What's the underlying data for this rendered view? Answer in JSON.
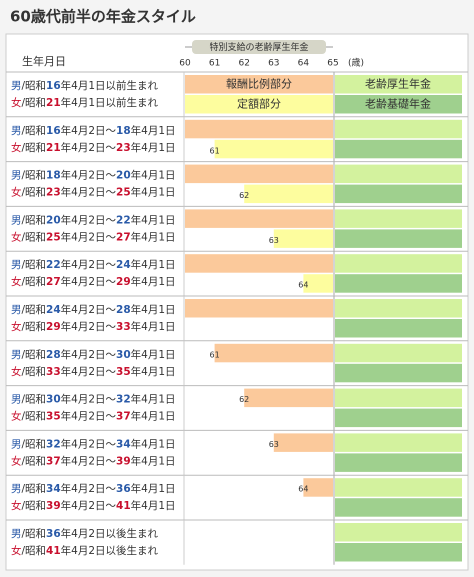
{
  "title": "60歳代前半の年金スタイル",
  "header": {
    "birth_label": "生年月日",
    "bracket": "特別支給の老齢厚生年金",
    "unit": "(歳)",
    "xlim": [
      60,
      65
    ],
    "ages": [
      60,
      61,
      62,
      63,
      64,
      65
    ]
  },
  "bands": {
    "earnings": "報酬比例部分",
    "flat": "定額部分",
    "employee": "老齢厚生年金",
    "basic": "老齢基礎年金"
  },
  "rows": [
    {
      "lines": [
        [
          "男",
          "/昭和",
          "16",
          "年4月1日以前生まれ"
        ],
        [
          "女",
          "/昭和",
          "21",
          "年4月1日以前生まれ"
        ]
      ],
      "earnings_from": 60,
      "flat_from": 60
    },
    {
      "lines": [
        [
          "男",
          "/昭和",
          "16",
          "年4月2日～",
          "18",
          "年4月1日"
        ],
        [
          "女",
          "/昭和",
          "21",
          "年4月2日～",
          "23",
          "年4月1日"
        ]
      ],
      "earnings_from": 60,
      "flat_from": 61
    },
    {
      "lines": [
        [
          "男",
          "/昭和",
          "18",
          "年4月2日～",
          "20",
          "年4月1日"
        ],
        [
          "女",
          "/昭和",
          "23",
          "年4月2日～",
          "25",
          "年4月1日"
        ]
      ],
      "earnings_from": 60,
      "flat_from": 62
    },
    {
      "lines": [
        [
          "男",
          "/昭和",
          "20",
          "年4月2日～",
          "22",
          "年4月1日"
        ],
        [
          "女",
          "/昭和",
          "25",
          "年4月2日～",
          "27",
          "年4月1日"
        ]
      ],
      "earnings_from": 60,
      "flat_from": 63
    },
    {
      "lines": [
        [
          "男",
          "/昭和",
          "22",
          "年4月2日～",
          "24",
          "年4月1日"
        ],
        [
          "女",
          "/昭和",
          "27",
          "年4月2日～",
          "29",
          "年4月1日"
        ]
      ],
      "earnings_from": 60,
      "flat_from": 64
    },
    {
      "lines": [
        [
          "男",
          "/昭和",
          "24",
          "年4月2日～",
          "28",
          "年4月1日"
        ],
        [
          "女",
          "/昭和",
          "29",
          "年4月2日～",
          "33",
          "年4月1日"
        ]
      ],
      "earnings_from": 60,
      "flat_from": null
    },
    {
      "lines": [
        [
          "男",
          "/昭和",
          "28",
          "年4月2日～",
          "30",
          "年4月1日"
        ],
        [
          "女",
          "/昭和",
          "33",
          "年4月2日～",
          "35",
          "年4月1日"
        ]
      ],
      "earnings_from": 61,
      "flat_from": null
    },
    {
      "lines": [
        [
          "男",
          "/昭和",
          "30",
          "年4月2日～",
          "32",
          "年4月1日"
        ],
        [
          "女",
          "/昭和",
          "35",
          "年4月2日～",
          "37",
          "年4月1日"
        ]
      ],
      "earnings_from": 62,
      "flat_from": null
    },
    {
      "lines": [
        [
          "男",
          "/昭和",
          "32",
          "年4月2日～",
          "34",
          "年4月1日"
        ],
        [
          "女",
          "/昭和",
          "37",
          "年4月2日～",
          "39",
          "年4月1日"
        ]
      ],
      "earnings_from": 63,
      "flat_from": null
    },
    {
      "lines": [
        [
          "男",
          "/昭和",
          "34",
          "年4月2日～",
          "36",
          "年4月1日"
        ],
        [
          "女",
          "/昭和",
          "39",
          "年4月2日～",
          "41",
          "年4月1日"
        ]
      ],
      "earnings_from": 64,
      "flat_from": null
    },
    {
      "lines": [
        [
          "男",
          "/昭和",
          "36",
          "年4月2日以後生まれ"
        ],
        [
          "女",
          "/昭和",
          "41",
          "年4月2日以後生まれ"
        ]
      ],
      "earnings_from": null,
      "flat_from": null
    }
  ]
}
